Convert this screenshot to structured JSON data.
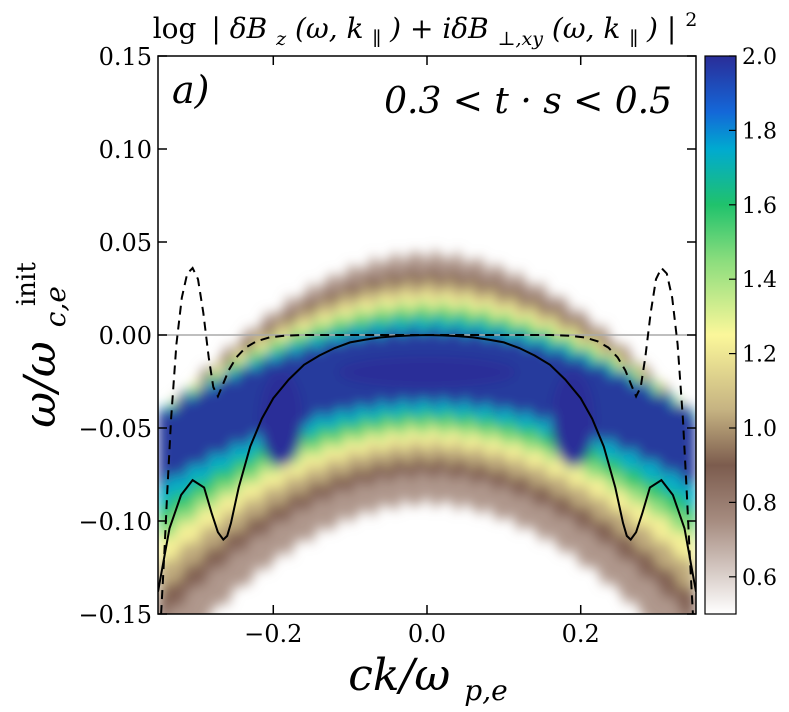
{
  "chart_data": {
    "type": "heatmap",
    "title": "log |δB_z(ω, k_∥) + iδB_⊥,xy(ω, k_∥)|²",
    "title_parts": {
      "log": "log",
      "bar": "|",
      "dB": "δB",
      "z": "z",
      "args": "(ω, k",
      "par": "∥",
      "close": ")",
      "plus": " + iδB",
      "perp": "⊥,xy",
      "end": "|",
      "sq": "2"
    },
    "panel_label": "a)",
    "time_annotation": "0.3 < t · s < 0.5",
    "xlabel": "ck/ω_p,e",
    "xlabel_parts": {
      "main": "ck/ω",
      "sub": "p,e"
    },
    "ylabel": "ω/ω_c,e^init",
    "ylabel_parts": {
      "main": "ω/ω",
      "sub": "c,e",
      "sup": "init"
    },
    "xlim": [
      -0.35,
      0.35
    ],
    "ylim": [
      -0.15,
      0.15
    ],
    "xticks": [
      -0.2,
      0.0,
      0.2
    ],
    "xtick_labels": [
      "−0.2",
      "0.0",
      "0.2"
    ],
    "yticks": [
      0.15,
      0.1,
      0.05,
      0.0,
      -0.05,
      -0.1,
      -0.15
    ],
    "ytick_labels": [
      "0.15",
      "0.10",
      "0.05",
      "0.00",
      "−0.05",
      "−0.10",
      "−0.15"
    ],
    "colorbar": {
      "range": [
        0.5,
        2.0
      ],
      "ticks": [
        2.0,
        1.8,
        1.6,
        1.4,
        1.2,
        1.0,
        0.8,
        0.6
      ],
      "tick_labels": [
        "2.0",
        "1.8",
        "1.6",
        "1.4",
        "1.2",
        "1.0",
        "0.8",
        "0.6"
      ],
      "colormap": "terrain_r",
      "stops": [
        {
          "v": 0.5,
          "c": "#ffffff"
        },
        {
          "v": 0.75,
          "c": "#a68c80"
        },
        {
          "v": 0.9,
          "c": "#7c5c4e"
        },
        {
          "v": 1.05,
          "c": "#c6b382"
        },
        {
          "v": 1.25,
          "c": "#fbf79a"
        },
        {
          "v": 1.45,
          "c": "#8bdd7d"
        },
        {
          "v": 1.6,
          "c": "#20c26c"
        },
        {
          "v": 1.75,
          "c": "#00aad0"
        },
        {
          "v": 1.85,
          "c": "#1467d8"
        },
        {
          "v": 2.0,
          "c": "#2a2d98"
        }
      ]
    },
    "reference_line": {
      "y": 0.0,
      "color": "#aaaaaa"
    },
    "heatmap_peak": {
      "x": 0.0,
      "y": -0.02,
      "value": 2.0
    },
    "series": [
      {
        "name": "solid dispersion",
        "style": "solid",
        "x": [
          -0.35,
          -0.343,
          -0.335,
          -0.32,
          -0.305,
          -0.29,
          -0.28,
          -0.272,
          -0.265,
          -0.26,
          -0.255,
          -0.245,
          -0.23,
          -0.215,
          -0.2,
          -0.18,
          -0.16,
          -0.14,
          -0.12,
          -0.1,
          -0.08,
          -0.06,
          -0.04,
          -0.02,
          0.0,
          0.02,
          0.04,
          0.06,
          0.08,
          0.1,
          0.12,
          0.14,
          0.16,
          0.18,
          0.2,
          0.215,
          0.23,
          0.245,
          0.255,
          0.26,
          0.265,
          0.272,
          0.28,
          0.29,
          0.305,
          0.32,
          0.335,
          0.343,
          0.35
        ],
        "y": [
          -0.138,
          -0.122,
          -0.104,
          -0.086,
          -0.078,
          -0.082,
          -0.096,
          -0.106,
          -0.11,
          -0.108,
          -0.101,
          -0.082,
          -0.06,
          -0.045,
          -0.034,
          -0.024,
          -0.016,
          -0.011,
          -0.007,
          -0.004,
          -0.0025,
          -0.0013,
          -0.0006,
          -0.0002,
          0.0,
          -0.0002,
          -0.0006,
          -0.0013,
          -0.0025,
          -0.004,
          -0.007,
          -0.011,
          -0.016,
          -0.024,
          -0.034,
          -0.045,
          -0.06,
          -0.082,
          -0.101,
          -0.108,
          -0.11,
          -0.106,
          -0.096,
          -0.082,
          -0.078,
          -0.086,
          -0.104,
          -0.122,
          -0.138
        ]
      },
      {
        "name": "dashed dispersion",
        "style": "dashed",
        "x": [
          -0.346,
          -0.342,
          -0.338,
          -0.333,
          -0.326,
          -0.319,
          -0.312,
          -0.305,
          -0.298,
          -0.291,
          -0.284,
          -0.278,
          -0.272,
          -0.266,
          -0.258,
          -0.248,
          -0.236,
          -0.222,
          -0.205,
          -0.185,
          -0.16,
          -0.12,
          -0.08,
          -0.04,
          0.0,
          0.04,
          0.08,
          0.12,
          0.16,
          0.185,
          0.205,
          0.222,
          0.236,
          0.248,
          0.258,
          0.266,
          0.272,
          0.278,
          0.284,
          0.291,
          0.298,
          0.305,
          0.312,
          0.319,
          0.326,
          0.333,
          0.338,
          0.342,
          0.346
        ],
        "y": [
          -0.15,
          -0.12,
          -0.085,
          -0.045,
          -0.005,
          0.02,
          0.033,
          0.036,
          0.03,
          0.012,
          -0.012,
          -0.028,
          -0.033,
          -0.027,
          -0.019,
          -0.012,
          -0.0068,
          -0.0034,
          -0.0013,
          -0.0004,
          0.0,
          0.0,
          0.0,
          0.0,
          0.0,
          0.0,
          0.0,
          0.0,
          0.0,
          -0.0004,
          -0.0013,
          -0.0034,
          -0.0068,
          -0.012,
          -0.019,
          -0.027,
          -0.033,
          -0.028,
          -0.012,
          0.012,
          0.03,
          0.036,
          0.033,
          0.02,
          -0.005,
          -0.045,
          -0.085,
          -0.12,
          -0.15
        ]
      }
    ]
  }
}
